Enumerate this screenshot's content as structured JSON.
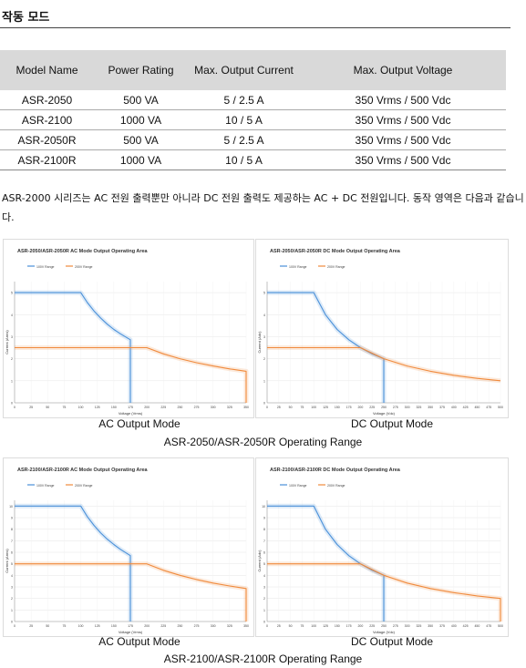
{
  "section_title": "작동 모드",
  "table": {
    "headers": [
      "Model Name",
      "Power Rating",
      "Max. Output Current",
      "Max. Output Voltage"
    ],
    "rows": [
      [
        "ASR-2050",
        "500 VA",
        "5 / 2.5 A",
        "350 Vrms / 500 Vdc"
      ],
      [
        "ASR-2100",
        "1000 VA",
        "10 / 5 A",
        "350 Vrms / 500 Vdc"
      ],
      [
        "ASR-2050R",
        "500 VA",
        "5 / 2.5 A",
        "350 Vrms / 500 Vdc"
      ],
      [
        "ASR-2100R",
        "1000 VA",
        "10 / 5 A",
        "350 Vrms / 500 Vdc"
      ]
    ]
  },
  "description": "ASR-2000 시리즈는 AC 전원 출력뿐만 아니라 DC 전원 출력도 제공하는 AC + DC 전원입니다. 동작 영역은 다음과 같습니다.",
  "colors": {
    "range_100v": "#4a90d9",
    "range_200v": "#f08a3c"
  },
  "chart_data": [
    {
      "type": "line",
      "title": "ASR-2050/ASR-2050R AC Mode Output Operating Area",
      "caption": "AC Output Mode",
      "xlabel": "Voltage (Vrms)",
      "ylabel": "Current (Arms)",
      "xlim": [
        0,
        350
      ],
      "ylim": [
        0,
        5.5
      ],
      "xticks": [
        0,
        25,
        50,
        75,
        100,
        125,
        150,
        175,
        200,
        225,
        250,
        275,
        300,
        325,
        350
      ],
      "yticks": [
        0,
        1,
        2,
        3,
        4,
        5
      ],
      "series": [
        {
          "name": "100V Range",
          "x": [
            0,
            100,
            110,
            120,
            130,
            140,
            150,
            160,
            175,
            175
          ],
          "y": [
            5,
            5,
            4.55,
            4.17,
            3.85,
            3.57,
            3.33,
            3.13,
            2.86,
            0
          ]
        },
        {
          "name": "200V Range",
          "x": [
            0,
            200,
            225,
            250,
            275,
            300,
            325,
            350,
            350
          ],
          "y": [
            2.5,
            2.5,
            2.22,
            2.0,
            1.82,
            1.67,
            1.54,
            1.43,
            0
          ]
        }
      ]
    },
    {
      "type": "line",
      "title": "ASR-2050/ASR-2050R DC Mode Output Operating Area",
      "caption": "DC Output Mode",
      "xlabel": "Voltage (Vdc)",
      "ylabel": "Current (Adc)",
      "xlim": [
        0,
        500
      ],
      "ylim": [
        0,
        5.5
      ],
      "xticks": [
        0,
        25,
        50,
        75,
        100,
        125,
        150,
        175,
        200,
        225,
        250,
        275,
        300,
        325,
        350,
        375,
        400,
        425,
        450,
        475,
        500
      ],
      "yticks": [
        0,
        1,
        2,
        3,
        4,
        5
      ],
      "series": [
        {
          "name": "100V Range",
          "x": [
            0,
            100,
            125,
            150,
            175,
            200,
            225,
            250,
            250
          ],
          "y": [
            5,
            5,
            4.0,
            3.33,
            2.86,
            2.5,
            2.22,
            2.0,
            0
          ]
        },
        {
          "name": "200V Range",
          "x": [
            0,
            200,
            250,
            300,
            350,
            400,
            450,
            500
          ],
          "y": [
            2.5,
            2.5,
            2.0,
            1.67,
            1.43,
            1.25,
            1.11,
            1.0
          ]
        }
      ]
    },
    {
      "type": "line",
      "title": "ASR-2100/ASR-2100R AC Mode Output Operating Area",
      "caption": "AC Output Mode",
      "xlabel": "Voltage (Vrms)",
      "ylabel": "Current (Arms)",
      "xlim": [
        0,
        350
      ],
      "ylim": [
        0,
        10.5
      ],
      "xticks": [
        0,
        25,
        50,
        75,
        100,
        125,
        150,
        175,
        200,
        225,
        250,
        275,
        300,
        325,
        350
      ],
      "yticks": [
        0,
        1,
        2,
        3,
        4,
        5,
        6,
        7,
        8,
        9,
        10
      ],
      "series": [
        {
          "name": "100V Range",
          "x": [
            0,
            100,
            110,
            120,
            130,
            140,
            150,
            160,
            175,
            175
          ],
          "y": [
            10,
            10,
            9.09,
            8.33,
            7.69,
            7.14,
            6.67,
            6.25,
            5.71,
            0
          ]
        },
        {
          "name": "200V Range",
          "x": [
            0,
            200,
            225,
            250,
            275,
            300,
            325,
            350,
            350
          ],
          "y": [
            5,
            5,
            4.44,
            4.0,
            3.64,
            3.33,
            3.08,
            2.86,
            0
          ]
        }
      ]
    },
    {
      "type": "line",
      "title": "ASR-2100/ASR-2100R DC Mode Output Operating Area",
      "caption": "DC Output Mode",
      "xlabel": "Voltage (Vdc)",
      "ylabel": "Current (Adc)",
      "xlim": [
        0,
        500
      ],
      "ylim": [
        0,
        10.5
      ],
      "xticks": [
        0,
        25,
        50,
        75,
        100,
        125,
        150,
        175,
        200,
        225,
        250,
        275,
        300,
        325,
        350,
        375,
        400,
        425,
        450,
        475,
        500
      ],
      "yticks": [
        0,
        1,
        2,
        3,
        4,
        5,
        6,
        7,
        8,
        9,
        10
      ],
      "series": [
        {
          "name": "100V Range",
          "x": [
            0,
            100,
            125,
            150,
            175,
            200,
            225,
            250,
            250
          ],
          "y": [
            10,
            10,
            8.0,
            6.67,
            5.71,
            5.0,
            4.44,
            4.0,
            0
          ]
        },
        {
          "name": "200V Range",
          "x": [
            0,
            200,
            250,
            300,
            350,
            400,
            450,
            500,
            500
          ],
          "y": [
            5,
            5,
            4.0,
            3.33,
            2.86,
            2.5,
            2.22,
            2.0,
            0
          ]
        }
      ]
    }
  ],
  "range_captions": [
    "ASR-2050/ASR-2050R Operating Range",
    "ASR-2100/ASR-2100R Operating Range"
  ]
}
